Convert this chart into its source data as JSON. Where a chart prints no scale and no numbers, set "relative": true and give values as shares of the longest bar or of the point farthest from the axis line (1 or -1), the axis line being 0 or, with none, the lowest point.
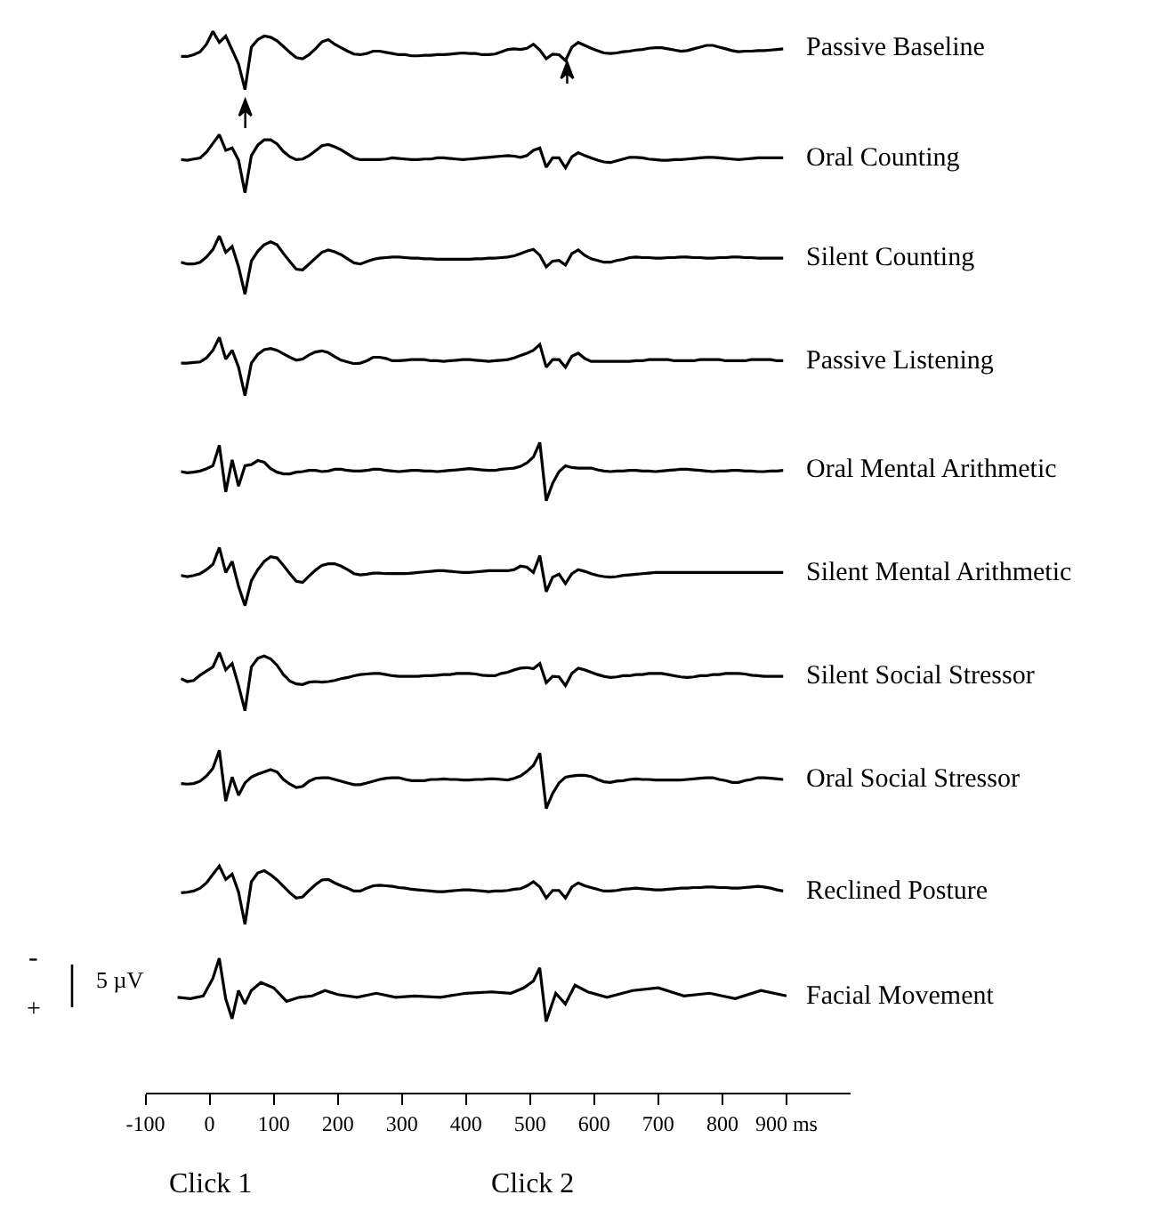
{
  "chart_data": [
    {
      "type": "line",
      "relative": true,
      "legend": false,
      "tick_labels": false,
      "categories": [
        null,
        null,
        null,
        null,
        null,
        null,
        null,
        null,
        null,
        null,
        null,
        null,
        null,
        null,
        null,
        null,
        null,
        null,
        null,
        null,
        null,
        null,
        null,
        null,
        null,
        null,
        null,
        null,
        null,
        null,
        null,
        null,
        null,
        null,
        null,
        null,
        null,
        null,
        null,
        null,
        null,
        null,
        null,
        null,
        null,
        null,
        null,
        null,
        null,
        null,
        null,
        null,
        null,
        null,
        null,
        null,
        null,
        null,
        null,
        null,
        null,
        null,
        null,
        null,
        null,
        null,
        null,
        null,
        null,
        null,
        null,
        null,
        null,
        null,
        null,
        null,
        null,
        null,
        null,
        null,
        null,
        null,
        null,
        null,
        null,
        null,
        null,
        null,
        null,
        null,
        null,
        null,
        null,
        null,
        null
      ],
      "series": [
        {
          "name": "Passive Baseline",
          "color": "#000000",
          "values": [
            0.57,
            0.57,
            0.6,
            0.65,
            0.78,
            1.0,
            0.81,
            0.92,
            0.68,
            0.44,
            0.0,
            0.73,
            0.86,
            0.92,
            0.9,
            0.84,
            0.74,
            0.64,
            0.55,
            0.53,
            0.6,
            0.7,
            0.82,
            0.86,
            0.78,
            0.72,
            0.66,
            0.61,
            0.6,
            0.62,
            0.66,
            0.66,
            0.64,
            0.62,
            0.6,
            0.6,
            0.58,
            0.58,
            0.59,
            0.59,
            0.6,
            0.6,
            0.61,
            0.62,
            0.63,
            0.62,
            0.62,
            0.6,
            0.6,
            0.61,
            0.65,
            0.69,
            0.7,
            0.69,
            0.71,
            0.78,
            0.68,
            0.53,
            0.61,
            0.6,
            0.5,
            0.73,
            0.81,
            0.76,
            0.71,
            0.67,
            0.63,
            0.62,
            0.63,
            0.65,
            0.66,
            0.68,
            0.69,
            0.71,
            0.72,
            0.72,
            0.7,
            0.68,
            0.66,
            0.67,
            0.7,
            0.73,
            0.76,
            0.76,
            0.73,
            0.7,
            0.67,
            0.65,
            0.66,
            0.66,
            0.67,
            0.67,
            0.68,
            0.69,
            0.7
          ]
        }
      ]
    },
    {
      "type": "line",
      "relative": true,
      "legend": false,
      "tick_labels": false,
      "categories": [
        null,
        null,
        null,
        null,
        null,
        null,
        null,
        null,
        null,
        null,
        null,
        null,
        null,
        null,
        null,
        null,
        null,
        null,
        null,
        null,
        null,
        null,
        null,
        null,
        null,
        null,
        null,
        null,
        null,
        null,
        null,
        null,
        null,
        null,
        null,
        null,
        null,
        null,
        null,
        null,
        null,
        null,
        null,
        null,
        null,
        null,
        null,
        null,
        null,
        null,
        null,
        null,
        null,
        null,
        null,
        null,
        null,
        null,
        null,
        null,
        null,
        null,
        null,
        null,
        null,
        null,
        null,
        null,
        null,
        null,
        null,
        null,
        null,
        null,
        null,
        null,
        null,
        null,
        null,
        null,
        null,
        null,
        null,
        null,
        null,
        null,
        null,
        null,
        null,
        null,
        null,
        null,
        null,
        null,
        null
      ],
      "series": [
        {
          "name": "Oral Counting",
          "color": "#000000",
          "values": [
            0.57,
            0.56,
            0.58,
            0.6,
            0.7,
            0.85,
            1.0,
            0.73,
            0.77,
            0.56,
            0.0,
            0.64,
            0.82,
            0.91,
            0.91,
            0.84,
            0.71,
            0.62,
            0.57,
            0.58,
            0.64,
            0.72,
            0.81,
            0.83,
            0.79,
            0.74,
            0.67,
            0.6,
            0.57,
            0.57,
            0.57,
            0.57,
            0.58,
            0.6,
            0.59,
            0.58,
            0.57,
            0.57,
            0.58,
            0.58,
            0.6,
            0.6,
            0.59,
            0.58,
            0.57,
            0.58,
            0.59,
            0.6,
            0.61,
            0.62,
            0.63,
            0.64,
            0.63,
            0.61,
            0.64,
            0.73,
            0.77,
            0.44,
            0.6,
            0.6,
            0.43,
            0.62,
            0.69,
            0.64,
            0.6,
            0.56,
            0.53,
            0.52,
            0.55,
            0.58,
            0.61,
            0.61,
            0.6,
            0.58,
            0.57,
            0.56,
            0.56,
            0.57,
            0.57,
            0.58,
            0.59,
            0.6,
            0.61,
            0.61,
            0.6,
            0.59,
            0.58,
            0.57,
            0.58,
            0.59,
            0.6,
            0.6,
            0.6,
            0.6,
            0.6
          ]
        }
      ]
    },
    {
      "type": "line",
      "relative": true,
      "legend": false,
      "tick_labels": false,
      "categories": [
        null,
        null,
        null,
        null,
        null,
        null,
        null,
        null,
        null,
        null,
        null,
        null,
        null,
        null,
        null,
        null,
        null,
        null,
        null,
        null,
        null,
        null,
        null,
        null,
        null,
        null,
        null,
        null,
        null,
        null,
        null,
        null,
        null,
        null,
        null,
        null,
        null,
        null,
        null,
        null,
        null,
        null,
        null,
        null,
        null,
        null,
        null,
        null,
        null,
        null,
        null,
        null,
        null,
        null,
        null,
        null,
        null,
        null,
        null,
        null,
        null,
        null,
        null,
        null,
        null,
        null,
        null,
        null,
        null,
        null,
        null,
        null,
        null,
        null,
        null,
        null,
        null,
        null,
        null,
        null,
        null,
        null,
        null,
        null,
        null,
        null,
        null,
        null,
        null,
        null,
        null,
        null,
        null,
        null,
        null
      ],
      "series": [
        {
          "name": "Silent Counting",
          "color": "#000000",
          "values": [
            0.55,
            0.52,
            0.52,
            0.55,
            0.64,
            0.77,
            1.0,
            0.72,
            0.82,
            0.47,
            0.0,
            0.57,
            0.74,
            0.85,
            0.9,
            0.85,
            0.7,
            0.56,
            0.43,
            0.42,
            0.52,
            0.62,
            0.72,
            0.76,
            0.73,
            0.68,
            0.61,
            0.54,
            0.52,
            0.56,
            0.6,
            0.62,
            0.63,
            0.64,
            0.64,
            0.63,
            0.62,
            0.62,
            0.61,
            0.61,
            0.6,
            0.6,
            0.6,
            0.6,
            0.6,
            0.6,
            0.61,
            0.61,
            0.62,
            0.62,
            0.63,
            0.64,
            0.66,
            0.7,
            0.74,
            0.77,
            0.67,
            0.47,
            0.57,
            0.58,
            0.5,
            0.7,
            0.76,
            0.67,
            0.61,
            0.58,
            0.55,
            0.55,
            0.58,
            0.6,
            0.63,
            0.64,
            0.63,
            0.63,
            0.62,
            0.62,
            0.63,
            0.63,
            0.64,
            0.64,
            0.63,
            0.63,
            0.62,
            0.62,
            0.63,
            0.63,
            0.64,
            0.64,
            0.63,
            0.63,
            0.62,
            0.62,
            0.62,
            0.62,
            0.62
          ]
        }
      ]
    },
    {
      "type": "line",
      "relative": true,
      "legend": false,
      "tick_labels": false,
      "categories": [
        null,
        null,
        null,
        null,
        null,
        null,
        null,
        null,
        null,
        null,
        null,
        null,
        null,
        null,
        null,
        null,
        null,
        null,
        null,
        null,
        null,
        null,
        null,
        null,
        null,
        null,
        null,
        null,
        null,
        null,
        null,
        null,
        null,
        null,
        null,
        null,
        null,
        null,
        null,
        null,
        null,
        null,
        null,
        null,
        null,
        null,
        null,
        null,
        null,
        null,
        null,
        null,
        null,
        null,
        null,
        null,
        null,
        null,
        null,
        null,
        null,
        null,
        null,
        null,
        null,
        null,
        null,
        null,
        null,
        null,
        null,
        null,
        null,
        null,
        null,
        null,
        null,
        null,
        null,
        null,
        null,
        null,
        null,
        null,
        null,
        null,
        null,
        null,
        null,
        null,
        null,
        null,
        null,
        null,
        null
      ],
      "series": [
        {
          "name": "Passive Listening",
          "color": "#000000",
          "values": [
            0.56,
            0.56,
            0.57,
            0.58,
            0.65,
            0.78,
            1.0,
            0.63,
            0.78,
            0.49,
            0.0,
            0.56,
            0.71,
            0.79,
            0.81,
            0.78,
            0.72,
            0.66,
            0.61,
            0.63,
            0.7,
            0.75,
            0.77,
            0.74,
            0.67,
            0.61,
            0.58,
            0.55,
            0.56,
            0.6,
            0.66,
            0.66,
            0.64,
            0.6,
            0.6,
            0.61,
            0.62,
            0.62,
            0.62,
            0.6,
            0.6,
            0.59,
            0.6,
            0.61,
            0.62,
            0.62,
            0.61,
            0.6,
            0.59,
            0.6,
            0.61,
            0.62,
            0.65,
            0.69,
            0.73,
            0.78,
            0.88,
            0.49,
            0.62,
            0.62,
            0.49,
            0.68,
            0.73,
            0.64,
            0.59,
            0.59,
            0.59,
            0.59,
            0.59,
            0.59,
            0.59,
            0.6,
            0.6,
            0.62,
            0.62,
            0.62,
            0.62,
            0.6,
            0.6,
            0.6,
            0.6,
            0.62,
            0.62,
            0.62,
            0.62,
            0.6,
            0.6,
            0.6,
            0.6,
            0.62,
            0.62,
            0.62,
            0.62,
            0.6,
            0.6
          ]
        }
      ]
    },
    {
      "type": "line",
      "relative": true,
      "legend": false,
      "tick_labels": false,
      "categories": [
        null,
        null,
        null,
        null,
        null,
        null,
        null,
        null,
        null,
        null,
        null,
        null,
        null,
        null,
        null,
        null,
        null,
        null,
        null,
        null,
        null,
        null,
        null,
        null,
        null,
        null,
        null,
        null,
        null,
        null,
        null,
        null,
        null,
        null,
        null,
        null,
        null,
        null,
        null,
        null,
        null,
        null,
        null,
        null,
        null,
        null,
        null,
        null,
        null,
        null,
        null,
        null,
        null,
        null,
        null,
        null,
        null,
        null,
        null,
        null,
        null,
        null,
        null,
        null,
        null,
        null,
        null,
        null,
        null,
        null,
        null,
        null,
        null,
        null,
        null,
        null,
        null,
        null,
        null,
        null,
        null,
        null,
        null,
        null,
        null,
        null,
        null,
        null,
        null,
        null,
        null,
        null,
        null,
        null,
        null
      ],
      "series": [
        {
          "name": "Oral Mental Arithmetic",
          "color": "#000000",
          "values": [
            0.5,
            0.48,
            0.49,
            0.51,
            0.55,
            0.6,
            0.95,
            0.15,
            0.7,
            0.25,
            0.6,
            0.62,
            0.69,
            0.66,
            0.55,
            0.49,
            0.46,
            0.46,
            0.49,
            0.5,
            0.52,
            0.52,
            0.5,
            0.51,
            0.54,
            0.54,
            0.52,
            0.51,
            0.51,
            0.52,
            0.54,
            0.54,
            0.52,
            0.51,
            0.5,
            0.51,
            0.52,
            0.52,
            0.51,
            0.51,
            0.5,
            0.51,
            0.52,
            0.53,
            0.54,
            0.55,
            0.54,
            0.53,
            0.52,
            0.52,
            0.54,
            0.55,
            0.56,
            0.59,
            0.65,
            0.75,
            1.0,
            0.0,
            0.3,
            0.5,
            0.6,
            0.57,
            0.56,
            0.56,
            0.56,
            0.53,
            0.51,
            0.5,
            0.51,
            0.51,
            0.52,
            0.52,
            0.51,
            0.51,
            0.5,
            0.51,
            0.52,
            0.53,
            0.54,
            0.54,
            0.53,
            0.52,
            0.51,
            0.5,
            0.51,
            0.51,
            0.52,
            0.52,
            0.51,
            0.51,
            0.5,
            0.5,
            0.51,
            0.51,
            0.52
          ]
        }
      ]
    },
    {
      "type": "line",
      "relative": true,
      "legend": false,
      "tick_labels": false,
      "categories": [
        null,
        null,
        null,
        null,
        null,
        null,
        null,
        null,
        null,
        null,
        null,
        null,
        null,
        null,
        null,
        null,
        null,
        null,
        null,
        null,
        null,
        null,
        null,
        null,
        null,
        null,
        null,
        null,
        null,
        null,
        null,
        null,
        null,
        null,
        null,
        null,
        null,
        null,
        null,
        null,
        null,
        null,
        null,
        null,
        null,
        null,
        null,
        null,
        null,
        null,
        null,
        null,
        null,
        null,
        null,
        null,
        null,
        null,
        null,
        null,
        null,
        null,
        null,
        null,
        null,
        null,
        null,
        null,
        null,
        null,
        null,
        null,
        null,
        null,
        null,
        null,
        null,
        null,
        null,
        null,
        null,
        null,
        null,
        null,
        null,
        null,
        null,
        null,
        null,
        null,
        null,
        null,
        null,
        null,
        null
      ],
      "series": [
        {
          "name": "Silent Mental Arithmetic",
          "color": "#000000",
          "values": [
            0.52,
            0.5,
            0.52,
            0.55,
            0.62,
            0.71,
            1.0,
            0.57,
            0.76,
            0.33,
            0.0,
            0.43,
            0.62,
            0.76,
            0.84,
            0.82,
            0.69,
            0.55,
            0.42,
            0.4,
            0.51,
            0.61,
            0.69,
            0.72,
            0.72,
            0.68,
            0.62,
            0.55,
            0.53,
            0.54,
            0.56,
            0.56,
            0.55,
            0.55,
            0.55,
            0.55,
            0.56,
            0.57,
            0.58,
            0.59,
            0.6,
            0.6,
            0.59,
            0.58,
            0.57,
            0.57,
            0.58,
            0.59,
            0.6,
            0.6,
            0.6,
            0.6,
            0.62,
            0.68,
            0.66,
            0.57,
            0.86,
            0.24,
            0.49,
            0.54,
            0.38,
            0.55,
            0.62,
            0.59,
            0.55,
            0.52,
            0.5,
            0.49,
            0.5,
            0.52,
            0.53,
            0.54,
            0.55,
            0.56,
            0.57,
            0.57,
            0.57,
            0.57,
            0.57,
            0.57,
            0.57,
            0.57,
            0.57,
            0.57,
            0.57,
            0.57,
            0.57,
            0.57,
            0.57,
            0.57,
            0.57,
            0.57,
            0.57,
            0.57,
            0.57
          ]
        }
      ]
    },
    {
      "type": "line",
      "relative": true,
      "legend": false,
      "tick_labels": false,
      "categories": [
        null,
        null,
        null,
        null,
        null,
        null,
        null,
        null,
        null,
        null,
        null,
        null,
        null,
        null,
        null,
        null,
        null,
        null,
        null,
        null,
        null,
        null,
        null,
        null,
        null,
        null,
        null,
        null,
        null,
        null,
        null,
        null,
        null,
        null,
        null,
        null,
        null,
        null,
        null,
        null,
        null,
        null,
        null,
        null,
        null,
        null,
        null,
        null,
        null,
        null,
        null,
        null,
        null,
        null,
        null,
        null,
        null,
        null,
        null,
        null,
        null,
        null,
        null,
        null,
        null,
        null,
        null,
        null,
        null,
        null,
        null,
        null,
        null,
        null,
        null,
        null,
        null,
        null,
        null,
        null,
        null,
        null,
        null,
        null,
        null,
        null,
        null,
        null,
        null,
        null,
        null,
        null,
        null,
        null,
        null
      ],
      "series": [
        {
          "name": "Silent Social Stressor",
          "color": "#000000",
          "values": [
            0.55,
            0.5,
            0.52,
            0.61,
            0.68,
            0.75,
            1.0,
            0.7,
            0.81,
            0.43,
            0.0,
            0.75,
            0.9,
            0.94,
            0.89,
            0.78,
            0.62,
            0.51,
            0.46,
            0.45,
            0.49,
            0.5,
            0.49,
            0.5,
            0.52,
            0.55,
            0.57,
            0.6,
            0.62,
            0.63,
            0.64,
            0.64,
            0.62,
            0.6,
            0.59,
            0.59,
            0.59,
            0.59,
            0.6,
            0.6,
            0.61,
            0.62,
            0.62,
            0.64,
            0.64,
            0.64,
            0.63,
            0.61,
            0.6,
            0.6,
            0.64,
            0.66,
            0.7,
            0.73,
            0.74,
            0.72,
            0.81,
            0.48,
            0.59,
            0.58,
            0.43,
            0.64,
            0.73,
            0.7,
            0.66,
            0.62,
            0.59,
            0.57,
            0.58,
            0.6,
            0.6,
            0.62,
            0.62,
            0.64,
            0.64,
            0.64,
            0.62,
            0.6,
            0.58,
            0.57,
            0.58,
            0.6,
            0.6,
            0.62,
            0.62,
            0.64,
            0.64,
            0.64,
            0.63,
            0.61,
            0.6,
            0.59,
            0.59,
            0.59,
            0.59
          ]
        }
      ]
    },
    {
      "type": "line",
      "relative": true,
      "legend": false,
      "tick_labels": false,
      "categories": [
        null,
        null,
        null,
        null,
        null,
        null,
        null,
        null,
        null,
        null,
        null,
        null,
        null,
        null,
        null,
        null,
        null,
        null,
        null,
        null,
        null,
        null,
        null,
        null,
        null,
        null,
        null,
        null,
        null,
        null,
        null,
        null,
        null,
        null,
        null,
        null,
        null,
        null,
        null,
        null,
        null,
        null,
        null,
        null,
        null,
        null,
        null,
        null,
        null,
        null,
        null,
        null,
        null,
        null,
        null,
        null,
        null,
        null,
        null,
        null,
        null,
        null,
        null,
        null,
        null,
        null,
        null,
        null,
        null,
        null,
        null,
        null,
        null,
        null,
        null,
        null,
        null,
        null,
        null,
        null,
        null,
        null,
        null,
        null,
        null,
        null,
        null,
        null,
        null,
        null,
        null,
        null,
        null,
        null,
        null
      ],
      "series": [
        {
          "name": "Oral Social Stressor",
          "color": "#000000",
          "values": [
            0.43,
            0.42,
            0.43,
            0.47,
            0.56,
            0.69,
            1.0,
            0.13,
            0.54,
            0.23,
            0.44,
            0.54,
            0.59,
            0.63,
            0.67,
            0.63,
            0.5,
            0.42,
            0.36,
            0.38,
            0.47,
            0.52,
            0.53,
            0.53,
            0.5,
            0.47,
            0.44,
            0.41,
            0.41,
            0.44,
            0.47,
            0.5,
            0.52,
            0.53,
            0.53,
            0.5,
            0.48,
            0.48,
            0.48,
            0.5,
            0.5,
            0.51,
            0.5,
            0.5,
            0.49,
            0.49,
            0.5,
            0.5,
            0.51,
            0.51,
            0.5,
            0.49,
            0.52,
            0.56,
            0.64,
            0.74,
            0.95,
            0.0,
            0.26,
            0.44,
            0.54,
            0.56,
            0.57,
            0.57,
            0.55,
            0.5,
            0.46,
            0.45,
            0.47,
            0.48,
            0.5,
            0.51,
            0.5,
            0.5,
            0.49,
            0.49,
            0.49,
            0.49,
            0.49,
            0.5,
            0.51,
            0.52,
            0.53,
            0.53,
            0.5,
            0.48,
            0.45,
            0.45,
            0.48,
            0.5,
            0.53,
            0.53,
            0.52,
            0.51,
            0.5
          ]
        }
      ]
    },
    {
      "type": "line",
      "relative": true,
      "legend": false,
      "tick_labels": false,
      "categories": [
        null,
        null,
        null,
        null,
        null,
        null,
        null,
        null,
        null,
        null,
        null,
        null,
        null,
        null,
        null,
        null,
        null,
        null,
        null,
        null,
        null,
        null,
        null,
        null,
        null,
        null,
        null,
        null,
        null,
        null,
        null,
        null,
        null,
        null,
        null,
        null,
        null,
        null,
        null,
        null,
        null,
        null,
        null,
        null,
        null,
        null,
        null,
        null,
        null,
        null,
        null,
        null,
        null,
        null,
        null,
        null,
        null,
        null,
        null,
        null,
        null,
        null,
        null,
        null,
        null,
        null,
        null,
        null,
        null,
        null,
        null,
        null,
        null,
        null,
        null,
        null,
        null,
        null,
        null,
        null,
        null,
        null,
        null,
        null,
        null,
        null,
        null,
        null,
        null,
        null,
        null,
        null,
        null,
        null,
        null
      ],
      "series": [
        {
          "name": "Reclined Posture",
          "color": "#000000",
          "values": [
            0.54,
            0.55,
            0.57,
            0.62,
            0.71,
            0.86,
            1.0,
            0.77,
            0.86,
            0.55,
            0.0,
            0.73,
            0.88,
            0.92,
            0.85,
            0.76,
            0.65,
            0.54,
            0.45,
            0.47,
            0.58,
            0.68,
            0.76,
            0.77,
            0.71,
            0.66,
            0.62,
            0.57,
            0.57,
            0.62,
            0.66,
            0.67,
            0.66,
            0.65,
            0.63,
            0.62,
            0.6,
            0.59,
            0.58,
            0.57,
            0.56,
            0.56,
            0.57,
            0.58,
            0.59,
            0.59,
            0.58,
            0.57,
            0.56,
            0.57,
            0.57,
            0.58,
            0.6,
            0.61,
            0.66,
            0.73,
            0.64,
            0.45,
            0.58,
            0.58,
            0.45,
            0.64,
            0.71,
            0.66,
            0.63,
            0.6,
            0.57,
            0.57,
            0.58,
            0.6,
            0.61,
            0.62,
            0.61,
            0.6,
            0.59,
            0.59,
            0.6,
            0.61,
            0.62,
            0.62,
            0.63,
            0.63,
            0.64,
            0.64,
            0.63,
            0.63,
            0.62,
            0.62,
            0.63,
            0.64,
            0.65,
            0.64,
            0.62,
            0.59,
            0.57
          ]
        }
      ]
    },
    {
      "type": "line",
      "relative": true,
      "legend": false,
      "tick_labels": "x",
      "xlim": [
        -100,
        1000
      ],
      "xticks": [
        -100,
        0,
        100,
        200,
        300,
        400,
        500,
        600,
        700,
        800,
        {
          "value": 900,
          "label": "900 ms"
        }
      ],
      "x": [
        -50,
        -30,
        -10,
        5,
        15,
        25,
        35,
        45,
        55,
        65,
        80,
        100,
        120,
        140,
        160,
        180,
        200,
        230,
        260,
        290,
        320,
        360,
        400,
        440,
        470,
        490,
        505,
        515,
        525,
        540,
        555,
        570,
        590,
        620,
        660,
        700,
        740,
        780,
        820,
        860,
        900
      ],
      "annotations": [
        "Click 1",
        "Click 2",
        "-",
        "+",
        "5 µV"
      ],
      "series": [
        {
          "name": "Facial Movement",
          "color": "#000000",
          "values": [
            0.71,
            0.7,
            0.72,
            0.85,
            1.0,
            0.7,
            0.55,
            0.76,
            0.66,
            0.76,
            0.82,
            0.78,
            0.68,
            0.71,
            0.72,
            0.76,
            0.73,
            0.71,
            0.74,
            0.71,
            0.72,
            0.71,
            0.74,
            0.75,
            0.74,
            0.78,
            0.83,
            0.93,
            0.53,
            0.74,
            0.66,
            0.8,
            0.75,
            0.71,
            0.76,
            0.78,
            0.72,
            0.74,
            0.7,
            0.76,
            0.72
          ]
        }
      ]
    }
  ]
}
